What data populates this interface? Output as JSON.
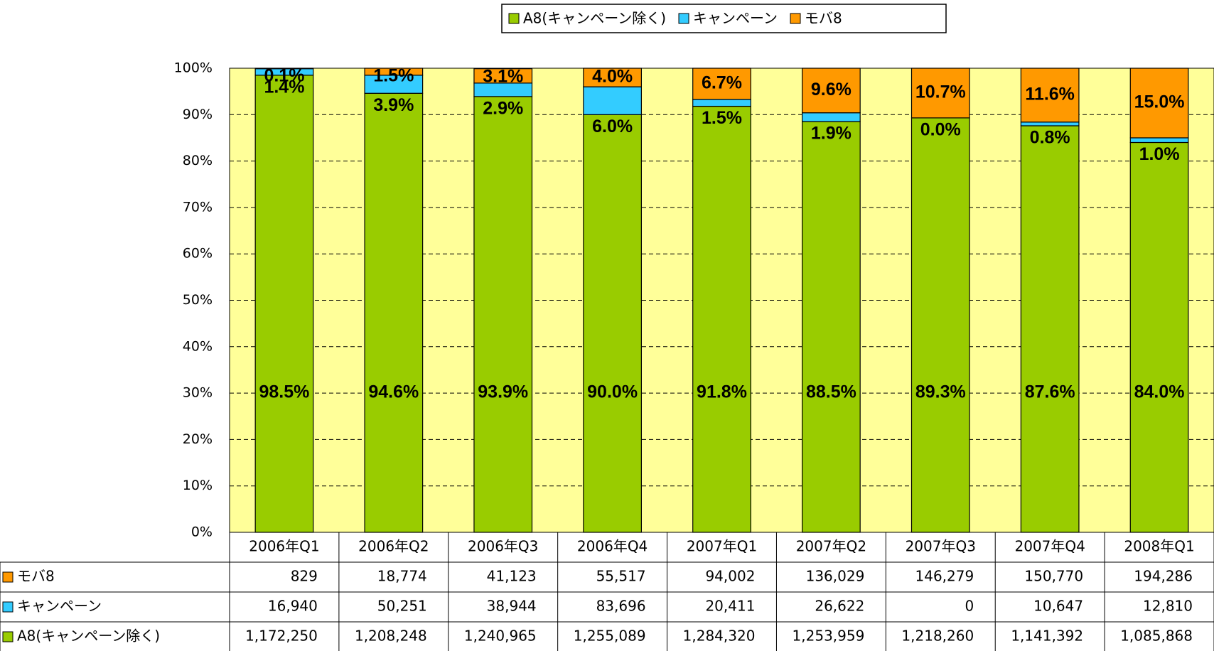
{
  "chart_data": {
    "type": "stacked_bar_100",
    "categories": [
      "2006年Q1",
      "2006年Q2",
      "2006年Q3",
      "2006年Q4",
      "2007年Q1",
      "2007年Q2",
      "2007年Q3",
      "2007年Q4",
      "2008年Q1"
    ],
    "series": [
      {
        "name": "A8(キャンペーン除く)",
        "color": "#99cc00",
        "values": [
          98.5,
          94.6,
          93.9,
          90.0,
          91.8,
          88.5,
          89.3,
          87.6,
          84.0
        ],
        "value_labels": [
          "98.5%",
          "94.6%",
          "93.9%",
          "90.0%",
          "91.8%",
          "88.5%",
          "89.3%",
          "87.6%",
          "84.0%"
        ],
        "table_values": [
          "1,172,250",
          "1,208,248",
          "1,240,965",
          "1,255,089",
          "1,284,320",
          "1,253,959",
          "1,218,260",
          "1,141,392",
          "1,085,868"
        ]
      },
      {
        "name": "キャンペーン",
        "color": "#33ccff",
        "values": [
          1.4,
          3.9,
          2.9,
          6.0,
          1.5,
          1.9,
          0.0,
          0.8,
          1.0
        ],
        "value_labels": [
          "1.4%",
          "3.9%",
          "2.9%",
          "6.0%",
          "1.5%",
          "1.9%",
          "0.0%",
          "0.8%",
          "1.0%"
        ],
        "table_values": [
          "16,940",
          "50,251",
          "38,944",
          "83,696",
          "20,411",
          "26,622",
          "0",
          "10,647",
          "12,810"
        ]
      },
      {
        "name": "モバ8",
        "color": "#ff9900",
        "values": [
          0.1,
          1.5,
          3.1,
          4.0,
          6.7,
          9.6,
          10.7,
          11.6,
          15.0
        ],
        "value_labels": [
          "0.1%",
          "1.5%",
          "3.1%",
          "4.0%",
          "6.7%",
          "9.6%",
          "10.7%",
          "11.6%",
          "15.0%"
        ],
        "table_values": [
          "829",
          "18,774",
          "41,123",
          "55,517",
          "94,002",
          "136,029",
          "146,279",
          "150,770",
          "194,286"
        ]
      }
    ],
    "ylim": [
      0,
      100
    ],
    "yticks": [
      {
        "value": 0,
        "label": "0%"
      },
      {
        "value": 10,
        "label": "10%"
      },
      {
        "value": 20,
        "label": "20%"
      },
      {
        "value": 30,
        "label": "30%"
      },
      {
        "value": 40,
        "label": "40%"
      },
      {
        "value": 50,
        "label": "50%"
      },
      {
        "value": 60,
        "label": "60%"
      },
      {
        "value": 70,
        "label": "70%"
      },
      {
        "value": 80,
        "label": "80%"
      },
      {
        "value": 90,
        "label": "90%"
      },
      {
        "value": 100,
        "label": "100%"
      }
    ],
    "grid": true,
    "legend": "top"
  }
}
